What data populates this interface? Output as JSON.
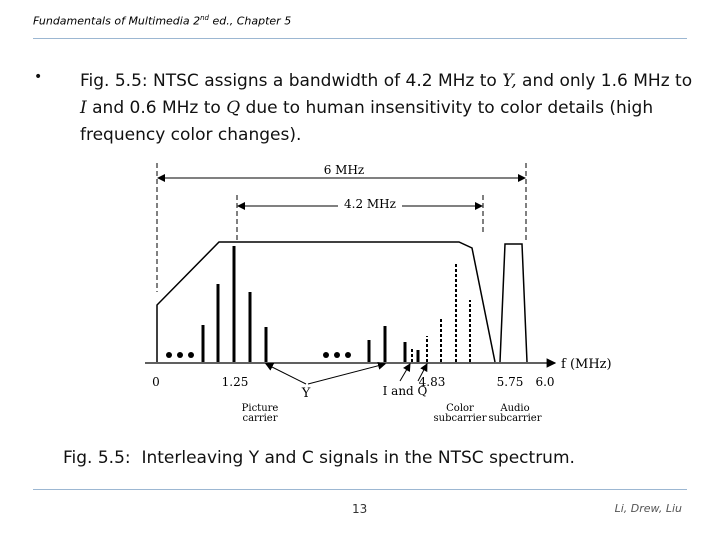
{
  "header": {
    "pre": "Fundamentals of Multimedia 2",
    "sup": "nd",
    "post": " ed., Chapter 5"
  },
  "slide": {
    "bullet": "•",
    "text_1": "Fig. 5.5: NTSC assigns a bandwidth of 4.2 MHz to ",
    "var_Y": "Y,",
    "text_2": " and only 1.6 MHz to ",
    "var_I": "I",
    "text_3": " and 0.6 MHz to ",
    "var_Q": "Q",
    "text_4": " due to human insensitivity to color details (high frequency color changes)."
  },
  "figure": {
    "span_6": "6 MHz",
    "span_42": "4.2 MHz",
    "axis_label": "f (MHz)",
    "ticks": [
      "0",
      "1.25",
      "4.83",
      "5.75",
      "6.0"
    ],
    "label_Y": "Y",
    "label_IQ": "I and Q",
    "picture_carrier": [
      "Picture",
      "carrier"
    ],
    "color_subcarrier": [
      "Color",
      "subcarrier"
    ],
    "audio_subcarrier": [
      "Audio",
      "subcarrier"
    ]
  },
  "caption": {
    "label": "Fig. 5.5:",
    "text": "  Interleaving Y and C signals in the NTSC spectrum."
  },
  "footer": {
    "page": "13",
    "authors": "Li, Drew, Liu"
  }
}
